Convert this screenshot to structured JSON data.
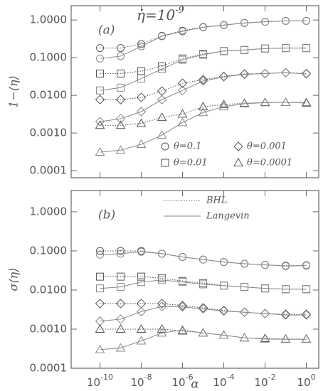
{
  "chart_data": [
    {
      "type": "line",
      "label": "(a)",
      "ylabel": "1−⟨η⟩",
      "annotation": {
        "base": "η̇=10",
        "exponent": "-9"
      },
      "log_x": true,
      "log_y": true,
      "xlim": [
        4e-12,
        4
      ],
      "ylim": [
        6.5e-05,
        2.4
      ],
      "xticks": [
        1e-10,
        1e-08,
        1e-06,
        0.0001,
        0.01,
        1
      ],
      "yticks": [
        {
          "value": 1,
          "label": "1.0000"
        },
        {
          "value": 0.1,
          "label": "0.1000"
        },
        {
          "value": 0.01,
          "label": "0.0100"
        },
        {
          "value": 0.001,
          "label": "0.0010"
        },
        {
          "value": 0.0001,
          "label": "0.0001"
        }
      ],
      "x": [
        1e-10,
        1e-09,
        1e-08,
        1e-07,
        1e-06,
        1e-05,
        0.0001,
        0.001,
        0.01,
        0.1,
        1
      ],
      "legend": [
        {
          "label": "θ=0.1",
          "marker": "circle"
        },
        {
          "label": "θ=0.001",
          "marker": "diamond"
        },
        {
          "label": "θ=0.01",
          "marker": "square"
        },
        {
          "label": "θ=0.0001",
          "marker": "triangle"
        }
      ],
      "series": [
        {
          "marker": "circle",
          "dash": "dotted",
          "color": "#555",
          "values": [
            0.18,
            0.18,
            0.23,
            0.38,
            0.52,
            0.65,
            0.74,
            0.84,
            0.9,
            0.95,
            0.95
          ]
        },
        {
          "marker": "circle",
          "dash": "solid",
          "color": "#888",
          "values": [
            0.095,
            0.11,
            0.2,
            0.37,
            0.5,
            0.64,
            0.73,
            0.83,
            0.9,
            0.95,
            0.95
          ]
        },
        {
          "marker": "square",
          "dash": "dotted",
          "color": "#555",
          "values": [
            0.038,
            0.038,
            0.044,
            0.059,
            0.095,
            0.125,
            0.15,
            0.16,
            0.175,
            0.18,
            0.18
          ]
        },
        {
          "marker": "square",
          "dash": "solid",
          "color": "#888",
          "values": [
            0.0135,
            0.016,
            0.028,
            0.05,
            0.088,
            0.12,
            0.15,
            0.16,
            0.175,
            0.18,
            0.18
          ]
        },
        {
          "marker": "diamond",
          "dash": "dotted",
          "color": "#555",
          "values": [
            0.0077,
            0.0077,
            0.0088,
            0.013,
            0.021,
            0.026,
            0.032,
            0.037,
            0.038,
            0.04,
            0.038
          ]
        },
        {
          "marker": "diamond",
          "dash": "solid",
          "color": "#888",
          "values": [
            0.002,
            0.0024,
            0.0037,
            0.0077,
            0.0135,
            0.024,
            0.031,
            0.036,
            0.038,
            0.04,
            0.037
          ]
        },
        {
          "marker": "triangle",
          "dash": "dotted",
          "color": "#555",
          "values": [
            0.0016,
            0.0016,
            0.0018,
            0.0026,
            0.0032,
            0.005,
            0.0057,
            0.0062,
            0.0065,
            0.0065,
            0.0062
          ]
        },
        {
          "marker": "triangle",
          "dash": "solid",
          "color": "#888",
          "values": [
            0.00031,
            0.00035,
            0.0005,
            0.00088,
            0.0019,
            0.0035,
            0.005,
            0.006,
            0.0064,
            0.0065,
            0.0065
          ]
        }
      ]
    },
    {
      "type": "line",
      "label": "(b)",
      "ylabel": "σ⟨η⟩",
      "xlabel": "α",
      "log_x": true,
      "log_y": true,
      "xlim": [
        4e-12,
        4
      ],
      "ylim": [
        0.0001,
        3.5
      ],
      "xticks": [
        {
          "value": 1e-10,
          "label": "10",
          "exponent": "-10"
        },
        {
          "value": 1e-08,
          "label": "10",
          "exponent": "-8"
        },
        {
          "value": 1e-06,
          "label": "10",
          "exponent": "-6"
        },
        {
          "value": 0.0001,
          "label": "10",
          "exponent": "-4"
        },
        {
          "value": 0.01,
          "label": "10",
          "exponent": "-2"
        },
        {
          "value": 1,
          "label": "10",
          "exponent": "0"
        }
      ],
      "yticks": [
        {
          "value": 1,
          "label": "1.0000"
        },
        {
          "value": 0.1,
          "label": "0.1000"
        },
        {
          "value": 0.01,
          "label": "0.0100"
        },
        {
          "value": 0.001,
          "label": "0.0010"
        },
        {
          "value": 0.0001,
          "label": "0.0001"
        }
      ],
      "x": [
        1e-10,
        1e-09,
        1e-08,
        1e-07,
        1e-06,
        1e-05,
        0.0001,
        0.001,
        0.01,
        0.1,
        1
      ],
      "legend": [
        {
          "label": "BHL",
          "dash": "dotted"
        },
        {
          "label": "Langevin",
          "dash": "solid"
        }
      ],
      "series": [
        {
          "marker": "circle",
          "dash": "dotted",
          "color": "#555",
          "values": [
            0.1,
            0.1,
            0.1,
            0.085,
            0.07,
            0.06,
            0.052,
            0.047,
            0.044,
            0.042,
            0.043
          ]
        },
        {
          "marker": "circle",
          "dash": "solid",
          "color": "#888",
          "values": [
            0.08,
            0.085,
            0.095,
            0.085,
            0.07,
            0.06,
            0.052,
            0.047,
            0.044,
            0.041,
            0.042
          ]
        },
        {
          "marker": "square",
          "dash": "dotted",
          "color": "#555",
          "values": [
            0.022,
            0.022,
            0.022,
            0.02,
            0.017,
            0.015,
            0.013,
            0.012,
            0.011,
            0.0105,
            0.0105
          ]
        },
        {
          "marker": "square",
          "dash": "solid",
          "color": "#888",
          "values": [
            0.011,
            0.012,
            0.016,
            0.018,
            0.016,
            0.014,
            0.013,
            0.012,
            0.011,
            0.0105,
            0.0105
          ]
        },
        {
          "marker": "diamond",
          "dash": "dotted",
          "color": "#555",
          "values": [
            0.0045,
            0.0045,
            0.0045,
            0.0045,
            0.004,
            0.0035,
            0.003,
            0.0027,
            0.0025,
            0.0024,
            0.0024
          ]
        },
        {
          "marker": "diamond",
          "dash": "solid",
          "color": "#888",
          "values": [
            0.0016,
            0.0018,
            0.0028,
            0.0038,
            0.0037,
            0.0033,
            0.0029,
            0.0027,
            0.0025,
            0.0023,
            0.0023
          ]
        },
        {
          "marker": "triangle",
          "dash": "dotted",
          "color": "#555",
          "values": [
            0.001,
            0.001,
            0.001,
            0.001,
            0.0009,
            0.0008,
            0.0007,
            0.0006,
            0.00058,
            0.00056,
            0.00056
          ]
        },
        {
          "marker": "triangle",
          "dash": "solid",
          "color": "#888",
          "values": [
            0.0003,
            0.00033,
            0.0005,
            0.0008,
            0.00095,
            0.0008,
            0.0007,
            0.0006,
            0.00056,
            0.00055,
            0.00055
          ]
        }
      ]
    }
  ]
}
